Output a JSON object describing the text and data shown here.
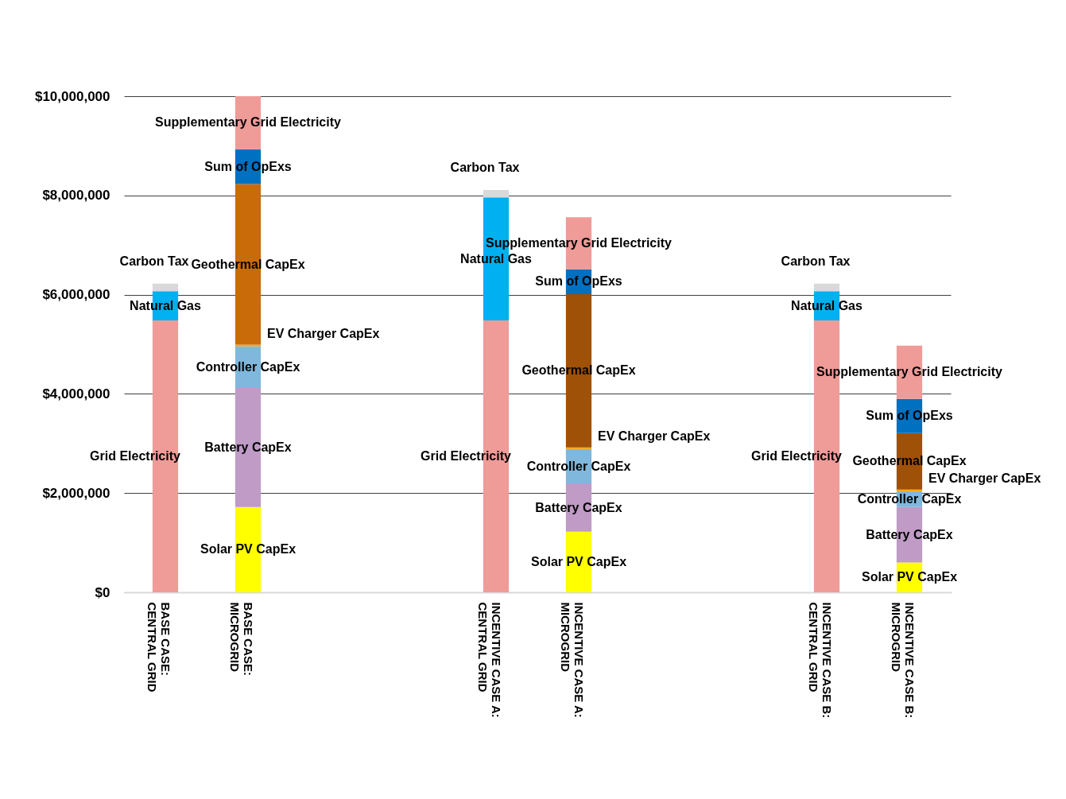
{
  "chart_data": {
    "type": "bar",
    "stacked": true,
    "grid": "y",
    "categories": [
      "BASE CASE: CENTRAL GRID",
      "BASE CASE: MICROGRID",
      null,
      null,
      "INCENTIVE CASE A: CENTRAL GRID",
      "INCENTIVE CASE A: MICROGRID",
      null,
      null,
      "INCENTIVE CASE B: CENTRAL GRID",
      "INCENTIVE CASE B: MICROGRID"
    ],
    "ylim": [
      0,
      10000000
    ],
    "yticks": [
      {
        "value": 0,
        "label": "$0"
      },
      {
        "value": 2000000,
        "label": "$2,000,000"
      },
      {
        "value": 4000000,
        "label": "$4,000,000"
      },
      {
        "value": 6000000,
        "label": "$6,000,000"
      },
      {
        "value": 8000000,
        "label": "$8,000,000"
      },
      {
        "value": 10000000,
        "label": "$10,000,000"
      }
    ],
    "series": [
      {
        "name": "Grid Electricity",
        "color": "#ef9b98",
        "values": [
          5480000,
          null,
          null,
          null,
          5480000,
          null,
          null,
          null,
          5480000,
          null
        ]
      },
      {
        "name": "Natural Gas",
        "color": "#00b0f0",
        "values": [
          590000,
          null,
          null,
          null,
          2480000,
          null,
          null,
          null,
          590000,
          null
        ]
      },
      {
        "name": "Carbon Tax",
        "color": "#d9d9d9",
        "values": [
          150000,
          null,
          null,
          null,
          150000,
          null,
          null,
          null,
          150000,
          null
        ]
      },
      {
        "name": "Solar PV CapEx",
        "color": "#ffff00",
        "values": [
          null,
          1720000,
          null,
          null,
          null,
          1220000,
          null,
          null,
          null,
          600000
        ]
      },
      {
        "name": "Battery CapEx",
        "color": "#bf9bc6",
        "values": [
          null,
          2400000,
          null,
          null,
          null,
          960000,
          null,
          null,
          null,
          1120000
        ]
      },
      {
        "name": "Controller CapEx",
        "color": "#7fb8dc",
        "values": [
          null,
          840000,
          null,
          null,
          null,
          710000,
          null,
          null,
          null,
          320000
        ]
      },
      {
        "name": "EV Charger CapEx",
        "color": "#f4a300",
        "values": [
          null,
          30000,
          null,
          null,
          null,
          30000,
          null,
          null,
          null,
          30000
        ]
      },
      {
        "name": "Geothermal CapEx",
        "color": "#9e5107",
        "colors": [
          null,
          "#c96b08",
          null,
          null,
          null,
          null,
          null,
          null,
          null,
          null
        ],
        "values": [
          null,
          3240000,
          null,
          null,
          null,
          3090000,
          null,
          null,
          null,
          1140000
        ]
      },
      {
        "name": "Sum of OpExs",
        "color": "#0070c0",
        "values": [
          null,
          700000,
          null,
          null,
          null,
          500000,
          null,
          null,
          null,
          690000
        ]
      },
      {
        "name": "Supplementary Grid Electricity",
        "color": "#ef9b98",
        "values": [
          null,
          1070000,
          null,
          null,
          null,
          1050000,
          null,
          null,
          null,
          1070000
        ]
      }
    ]
  }
}
